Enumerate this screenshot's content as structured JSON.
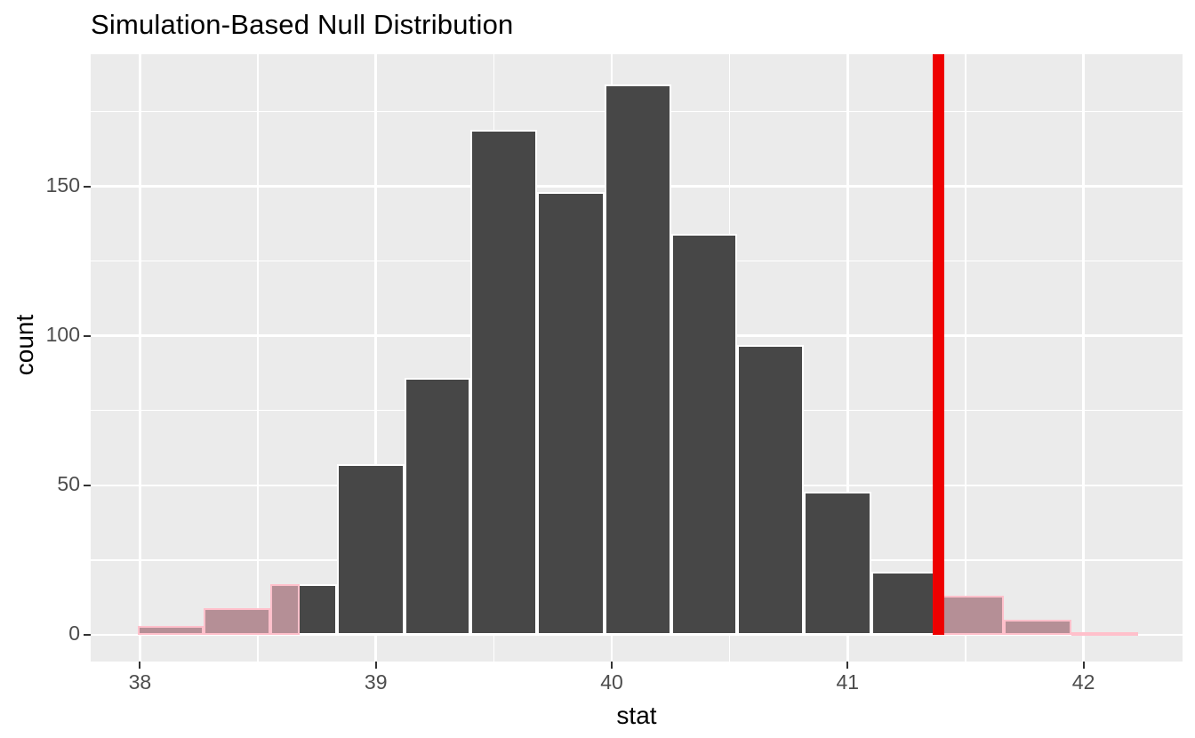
{
  "chart_data": {
    "type": "bar",
    "chart_kind": "histogram",
    "title": "Simulation-Based Null Distribution",
    "xlabel": "stat",
    "ylabel": "count",
    "x_ticks": [
      38,
      39,
      40,
      41,
      42
    ],
    "x_minor_ticks": [
      38.5,
      39.5,
      40.5,
      41.5
    ],
    "y_ticks": [
      0,
      50,
      100,
      150
    ],
    "y_minor_ticks": [
      25,
      75,
      125,
      175
    ],
    "xlim": [
      37.791,
      42.42
    ],
    "ylim": [
      -8.92,
      194.17
    ],
    "grid": "white major and minor gridlines on gray panel, legend none",
    "bin_width": 0.2827,
    "bins": [
      {
        "x0": 37.989,
        "x1": 38.271,
        "count": 3
      },
      {
        "x0": 38.271,
        "x1": 38.554,
        "count": 9
      },
      {
        "x0": 38.554,
        "x1": 38.837,
        "count": 17
      },
      {
        "x0": 38.837,
        "x1": 39.12,
        "count": 57
      },
      {
        "x0": 39.12,
        "x1": 39.402,
        "count": 86
      },
      {
        "x0": 39.402,
        "x1": 39.685,
        "count": 169
      },
      {
        "x0": 39.685,
        "x1": 39.968,
        "count": 148
      },
      {
        "x0": 39.968,
        "x1": 40.251,
        "count": 184
      },
      {
        "x0": 40.251,
        "x1": 40.533,
        "count": 134
      },
      {
        "x0": 40.533,
        "x1": 40.816,
        "count": 97
      },
      {
        "x0": 40.816,
        "x1": 41.099,
        "count": 48
      },
      {
        "x0": 41.099,
        "x1": 41.382,
        "count": 21
      },
      {
        "x0": 41.382,
        "x1": 41.664,
        "count": 13
      },
      {
        "x0": 41.664,
        "x1": 41.947,
        "count": 5
      },
      {
        "x0": 41.947,
        "x1": 42.23,
        "count": 1
      }
    ],
    "observed_stat": 41.385,
    "shade": {
      "direction": "two-sided",
      "left_bound": 38.677,
      "right_bound": 41.382,
      "bars": [
        {
          "x0": 37.989,
          "x1": 38.271,
          "count": 3
        },
        {
          "x0": 38.271,
          "x1": 38.554,
          "count": 9
        },
        {
          "x0": 38.554,
          "x1": 38.677,
          "count": 17
        },
        {
          "x0": 41.382,
          "x1": 41.664,
          "count": 13
        },
        {
          "x0": 41.664,
          "x1": 41.947,
          "count": 5
        },
        {
          "x0": 41.947,
          "x1": 42.23,
          "count": 1
        }
      ]
    },
    "colors": {
      "panel_bg": "#EBEBEB",
      "gridline": "#FFFFFF",
      "bar_fill": "#474747",
      "bar_border": "#FFFFFF",
      "shade_fill": "#FFC0CB",
      "shade_border": "#FFC0CB",
      "observed_line": "#EE0000",
      "tick_label": "#4D4D4D",
      "axis_text": "#000000"
    }
  }
}
